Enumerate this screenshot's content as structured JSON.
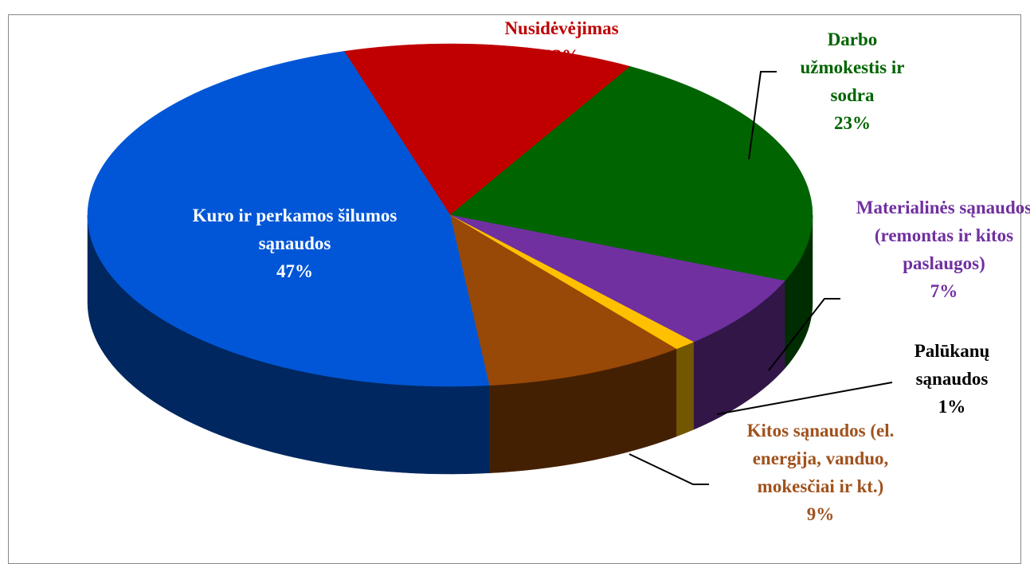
{
  "chart_data": {
    "type": "pie3d",
    "categories": [
      "Nusidėvėjimas",
      "Darbo užmokestis ir sodra",
      "Materialinės sąnaudos (remontas ir kitos paslaugos)",
      "Palūkanų sąnaudos",
      "Kitos sąnaudos (el. energija, vanduo, mokesčiai ir kt.)",
      "Kuro ir perkamos šilumos sąnaudos"
    ],
    "values": [
      13,
      23,
      7,
      1,
      9,
      47
    ],
    "value_labels": [
      "13%",
      "23%",
      "7%",
      "1%",
      "9%",
      "47%"
    ],
    "colors": [
      "#c00000",
      "#006400",
      "#7030a0",
      "#ffc000",
      "#984807",
      "#0056d6"
    ],
    "label_colors": [
      "#c00000",
      "#006400",
      "#7030a0",
      "#000000",
      "#a0521d",
      "#ffffff"
    ]
  }
}
